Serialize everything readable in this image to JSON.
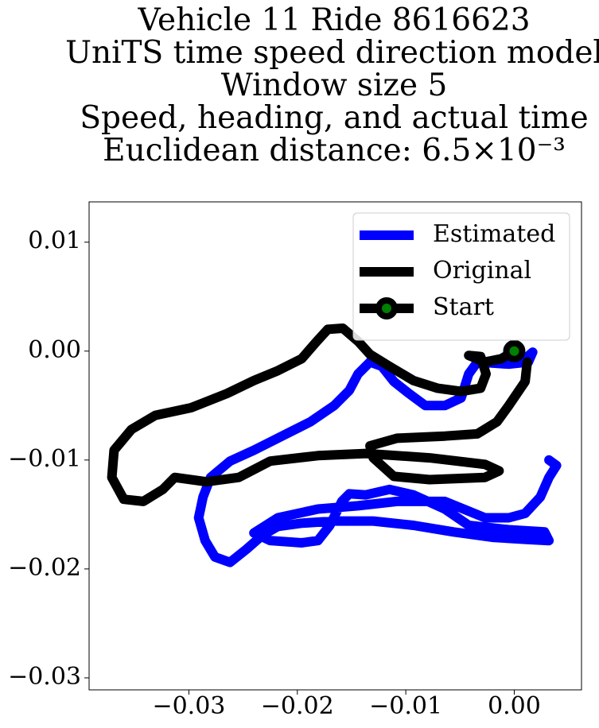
{
  "chart_data": {
    "type": "line",
    "title_lines": [
      "Vehicle 11 Ride 8616623",
      "UniTS time speed direction model",
      "Window size 5",
      "Speed, heading, and actual time",
      "Euclidean distance: 6.5×10⁻³"
    ],
    "xlim": [
      -0.0392,
      0.0062
    ],
    "ylim": [
      -0.0311,
      0.0137
    ],
    "xticks": [
      {
        "value": -0.03,
        "label": "−0.03"
      },
      {
        "value": -0.02,
        "label": "−0.02"
      },
      {
        "value": -0.01,
        "label": "−0.01"
      },
      {
        "value": 0,
        "label": "0.00"
      }
    ],
    "yticks": [
      {
        "value": -0.03,
        "label": "−0.03"
      },
      {
        "value": -0.02,
        "label": "−0.02"
      },
      {
        "value": -0.01,
        "label": "−0.01"
      },
      {
        "value": 0,
        "label": "0.00"
      },
      {
        "value": 0.01,
        "label": "0.01"
      }
    ],
    "legend": "upper right",
    "series": [
      {
        "name": "Estimated",
        "color": "#0000ff",
        "x": [
          0.001,
          0.0017,
          0.0013,
          -0.0005,
          -0.0034,
          -0.0042,
          -0.0049,
          -0.0064,
          -0.0082,
          -0.0097,
          -0.0111,
          -0.0122,
          -0.0133,
          -0.0144,
          -0.0152,
          -0.0166,
          -0.0188,
          -0.021,
          -0.024,
          -0.0262,
          -0.028,
          -0.0287,
          -0.0291,
          -0.0285,
          -0.0276,
          -0.0262,
          -0.0247,
          -0.0232,
          -0.0218,
          -0.0196,
          -0.0166,
          -0.013,
          -0.0093,
          -0.0056,
          -0.002,
          0.0013,
          0.0032,
          0.0028,
          -0.0005,
          -0.0042,
          -0.0064,
          -0.0093,
          -0.0115,
          -0.0137,
          -0.0152,
          -0.0159,
          -0.017,
          -0.0181,
          -0.0196,
          -0.0225,
          -0.024,
          -0.0218,
          -0.0181,
          -0.0144,
          -0.0108,
          -0.0064,
          -0.0027,
          -0.0005,
          0.001,
          0.0024,
          0.0032,
          0.0039,
          0.0032
        ],
        "values": [
          -0.0007,
          -0.0001,
          -0.001,
          -0.0012,
          -0.001,
          -0.0021,
          -0.0043,
          -0.005,
          -0.005,
          -0.0039,
          -0.0028,
          -0.0014,
          -0.001,
          -0.0021,
          -0.0036,
          -0.005,
          -0.0065,
          -0.0076,
          -0.0091,
          -0.0101,
          -0.0116,
          -0.0134,
          -0.0153,
          -0.0174,
          -0.0189,
          -0.0194,
          -0.0182,
          -0.0169,
          -0.0161,
          -0.0158,
          -0.0156,
          -0.0156,
          -0.016,
          -0.0166,
          -0.0171,
          -0.0173,
          -0.0174,
          -0.0166,
          -0.0164,
          -0.016,
          -0.0145,
          -0.0132,
          -0.0127,
          -0.0132,
          -0.0131,
          -0.0138,
          -0.016,
          -0.0174,
          -0.0176,
          -0.0174,
          -0.0167,
          -0.0153,
          -0.0145,
          -0.0142,
          -0.0138,
          -0.0138,
          -0.0153,
          -0.0153,
          -0.0149,
          -0.0134,
          -0.0116,
          -0.0105,
          -0.01
        ]
      },
      {
        "name": "Original",
        "color": "#000000",
        "x": [
          0,
          -0.0012,
          -0.0027,
          -0.0042,
          -0.0031,
          -0.0026,
          -0.0031,
          -0.0049,
          -0.0071,
          -0.0093,
          -0.0115,
          -0.0133,
          -0.0144,
          -0.0158,
          -0.0172,
          -0.0182,
          -0.0196,
          -0.0218,
          -0.024,
          -0.0265,
          -0.0298,
          -0.0331,
          -0.0353,
          -0.0369,
          -0.0371,
          -0.036,
          -0.0342,
          -0.0324,
          -0.0313,
          -0.0284,
          -0.0254,
          -0.0225,
          -0.0181,
          -0.0137,
          -0.0078,
          -0.0027,
          -0.0014,
          -0.0027,
          -0.0078,
          -0.0111,
          -0.013,
          -0.0133,
          -0.0108,
          -0.0064,
          -0.0034,
          -0.0016,
          -0.0005,
          0.001,
          0.0012
        ],
        "values": [
          0,
          -0.0007,
          -0.001,
          -0.0004,
          -0.0005,
          -0.0021,
          -0.0034,
          -0.0037,
          -0.0034,
          -0.0027,
          -0.0014,
          -0.0003,
          0.0009,
          0.0021,
          0.002,
          0.0009,
          -0.0007,
          -0.0018,
          -0.0027,
          -0.0039,
          -0.0052,
          -0.0059,
          -0.0072,
          -0.0091,
          -0.0116,
          -0.0136,
          -0.0138,
          -0.0127,
          -0.0116,
          -0.012,
          -0.0116,
          -0.0101,
          -0.0096,
          -0.0094,
          -0.0098,
          -0.0104,
          -0.011,
          -0.0116,
          -0.0118,
          -0.0115,
          -0.0098,
          -0.0087,
          -0.008,
          -0.0078,
          -0.0076,
          -0.0065,
          -0.005,
          -0.0028,
          -0.001
        ]
      },
      {
        "name": "Start",
        "color": "#008000",
        "edge_color": "#000000",
        "line_color": "#000000",
        "x": [
          0
        ],
        "values": [
          0
        ]
      }
    ]
  }
}
